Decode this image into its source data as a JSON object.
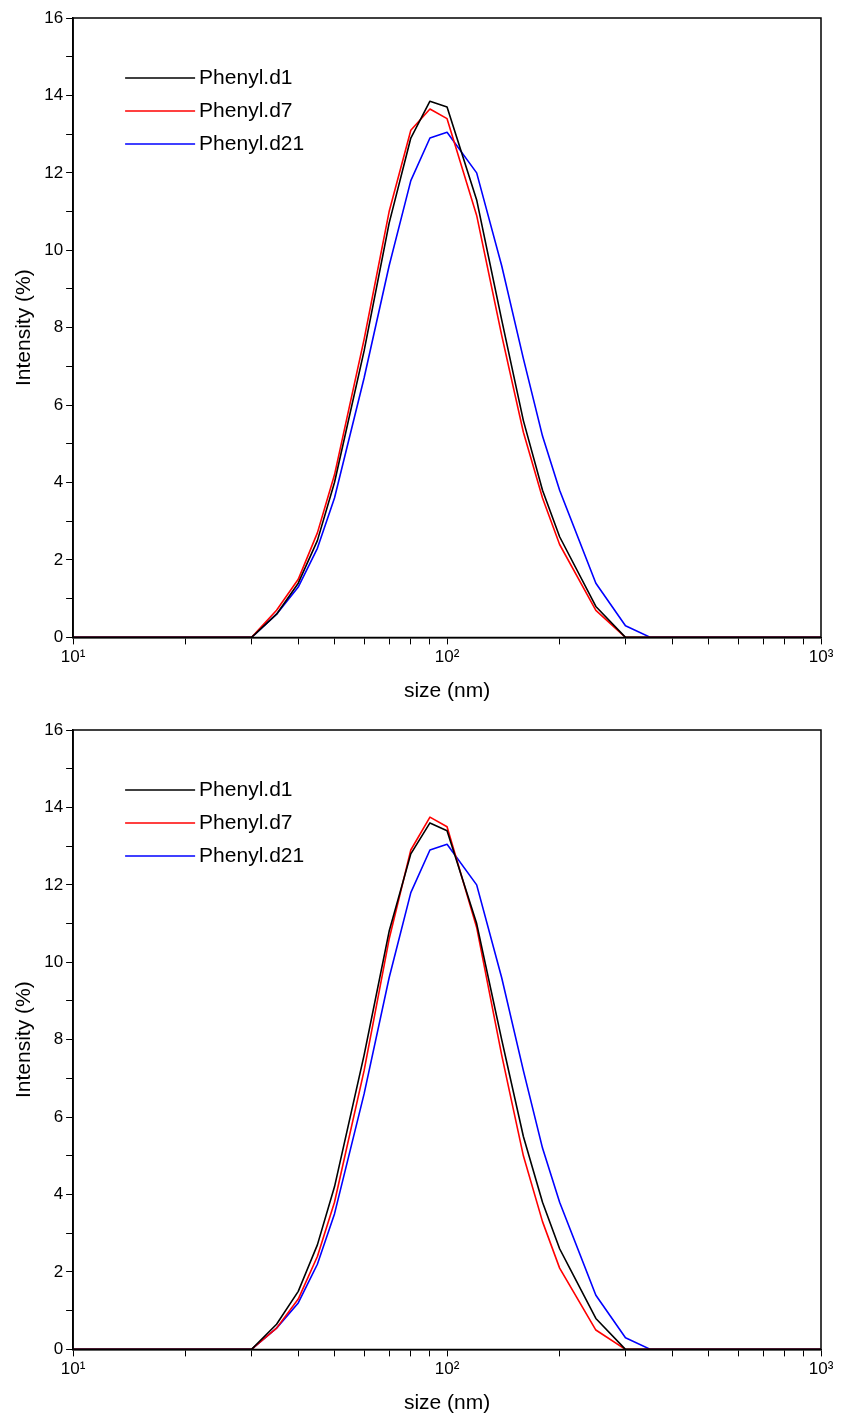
{
  "chart_data": [
    {
      "type": "line",
      "xlabel": "size (nm)",
      "ylabel": "Intensity (%)",
      "log": "x",
      "legend": "top left",
      "grid": false,
      "marker": "none",
      "line_style": "solid",
      "x": [
        10,
        30,
        35,
        40,
        45,
        50,
        60,
        70,
        80,
        90,
        100,
        120,
        140,
        160,
        180,
        200,
        250,
        300,
        350,
        1000
      ],
      "xlim": [
        10,
        1000
      ],
      "ylim": [
        0,
        16
      ],
      "xticks": [
        {
          "value": 10,
          "label": "10¹"
        },
        {
          "value": 20,
          "label": null
        },
        {
          "value": 30,
          "label": null
        },
        {
          "value": 40,
          "label": null
        },
        {
          "value": 50,
          "label": null
        },
        {
          "value": 60,
          "label": null
        },
        {
          "value": 70,
          "label": null
        },
        {
          "value": 80,
          "label": null
        },
        {
          "value": 90,
          "label": null
        },
        {
          "value": 100,
          "label": "10²"
        },
        {
          "value": 200,
          "label": null
        },
        {
          "value": 300,
          "label": null
        },
        {
          "value": 400,
          "label": null
        },
        {
          "value": 500,
          "label": null
        },
        {
          "value": 600,
          "label": null
        },
        {
          "value": 700,
          "label": null
        },
        {
          "value": 800,
          "label": null
        },
        {
          "value": 900,
          "label": null
        },
        {
          "value": 1000,
          "label": "10³"
        }
      ],
      "yticks": [
        0,
        {
          "value": 1,
          "label": null
        },
        2,
        {
          "value": 3,
          "label": null
        },
        4,
        {
          "value": 5,
          "label": null
        },
        6,
        {
          "value": 7,
          "label": null
        },
        8,
        {
          "value": 9,
          "label": null
        },
        10,
        {
          "value": 11,
          "label": null
        },
        12,
        {
          "value": 13,
          "label": null
        },
        14,
        {
          "value": 15,
          "label": null
        },
        16
      ],
      "series": [
        {
          "name": "Phenyl.d1",
          "color": "#000000",
          "values": [
            0,
            0,
            0.6,
            1.4,
            2.5,
            4.0,
            7.4,
            10.7,
            12.9,
            13.85,
            13.7,
            11.3,
            8.2,
            5.6,
            3.8,
            2.6,
            0.8,
            0,
            0,
            0
          ]
        },
        {
          "name": "Phenyl.d7",
          "color": "#ff0000",
          "values": [
            0,
            0,
            0.7,
            1.5,
            2.7,
            4.2,
            7.7,
            11.0,
            13.1,
            13.65,
            13.4,
            10.9,
            7.8,
            5.3,
            3.6,
            2.4,
            0.7,
            0,
            0,
            0
          ]
        },
        {
          "name": "Phenyl.d21",
          "color": "#0000ff",
          "values": [
            0,
            0,
            0.6,
            1.3,
            2.3,
            3.6,
            6.7,
            9.6,
            11.8,
            12.9,
            13.05,
            12.0,
            9.6,
            7.2,
            5.2,
            3.8,
            1.4,
            0.3,
            0,
            0
          ]
        }
      ]
    },
    {
      "type": "line",
      "xlabel": "size (nm)",
      "ylabel": "Intensity (%)",
      "log": "x",
      "legend": "top left",
      "grid": false,
      "marker": "none",
      "line_style": "solid",
      "x": [
        10,
        30,
        35,
        40,
        45,
        50,
        60,
        70,
        80,
        90,
        100,
        120,
        140,
        160,
        180,
        200,
        250,
        300,
        350,
        1000
      ],
      "xlim": [
        10,
        1000
      ],
      "ylim": [
        0,
        16
      ],
      "xticks": [
        {
          "value": 10,
          "label": "10¹"
        },
        {
          "value": 20,
          "label": null
        },
        {
          "value": 30,
          "label": null
        },
        {
          "value": 40,
          "label": null
        },
        {
          "value": 50,
          "label": null
        },
        {
          "value": 60,
          "label": null
        },
        {
          "value": 70,
          "label": null
        },
        {
          "value": 80,
          "label": null
        },
        {
          "value": 90,
          "label": null
        },
        {
          "value": 100,
          "label": "10²"
        },
        {
          "value": 200,
          "label": null
        },
        {
          "value": 300,
          "label": null
        },
        {
          "value": 400,
          "label": null
        },
        {
          "value": 500,
          "label": null
        },
        {
          "value": 600,
          "label": null
        },
        {
          "value": 700,
          "label": null
        },
        {
          "value": 800,
          "label": null
        },
        {
          "value": 900,
          "label": null
        },
        {
          "value": 1000,
          "label": "10³"
        }
      ],
      "yticks": [
        0,
        {
          "value": 1,
          "label": null
        },
        2,
        {
          "value": 3,
          "label": null
        },
        4,
        {
          "value": 5,
          "label": null
        },
        6,
        {
          "value": 7,
          "label": null
        },
        8,
        {
          "value": 9,
          "label": null
        },
        10,
        {
          "value": 11,
          "label": null
        },
        12,
        {
          "value": 13,
          "label": null
        },
        14,
        {
          "value": 15,
          "label": null
        },
        16
      ],
      "series": [
        {
          "name": "Phenyl.d1",
          "color": "#000000",
          "values": [
            0,
            0,
            0.65,
            1.5,
            2.7,
            4.2,
            7.6,
            10.8,
            12.8,
            13.6,
            13.4,
            11.0,
            8.0,
            5.5,
            3.8,
            2.6,
            0.8,
            0,
            0,
            0
          ]
        },
        {
          "name": "Phenyl.d7",
          "color": "#ff0000",
          "values": [
            0,
            0,
            0.55,
            1.3,
            2.4,
            3.8,
            7.2,
            10.6,
            12.9,
            13.75,
            13.5,
            10.9,
            7.6,
            5.0,
            3.3,
            2.1,
            0.5,
            0,
            0,
            0
          ]
        },
        {
          "name": "Phenyl.d21",
          "color": "#0000ff",
          "values": [
            0,
            0,
            0.55,
            1.2,
            2.2,
            3.5,
            6.6,
            9.6,
            11.8,
            12.9,
            13.05,
            12.0,
            9.6,
            7.2,
            5.2,
            3.8,
            1.4,
            0.3,
            0,
            0
          ]
        }
      ]
    }
  ]
}
